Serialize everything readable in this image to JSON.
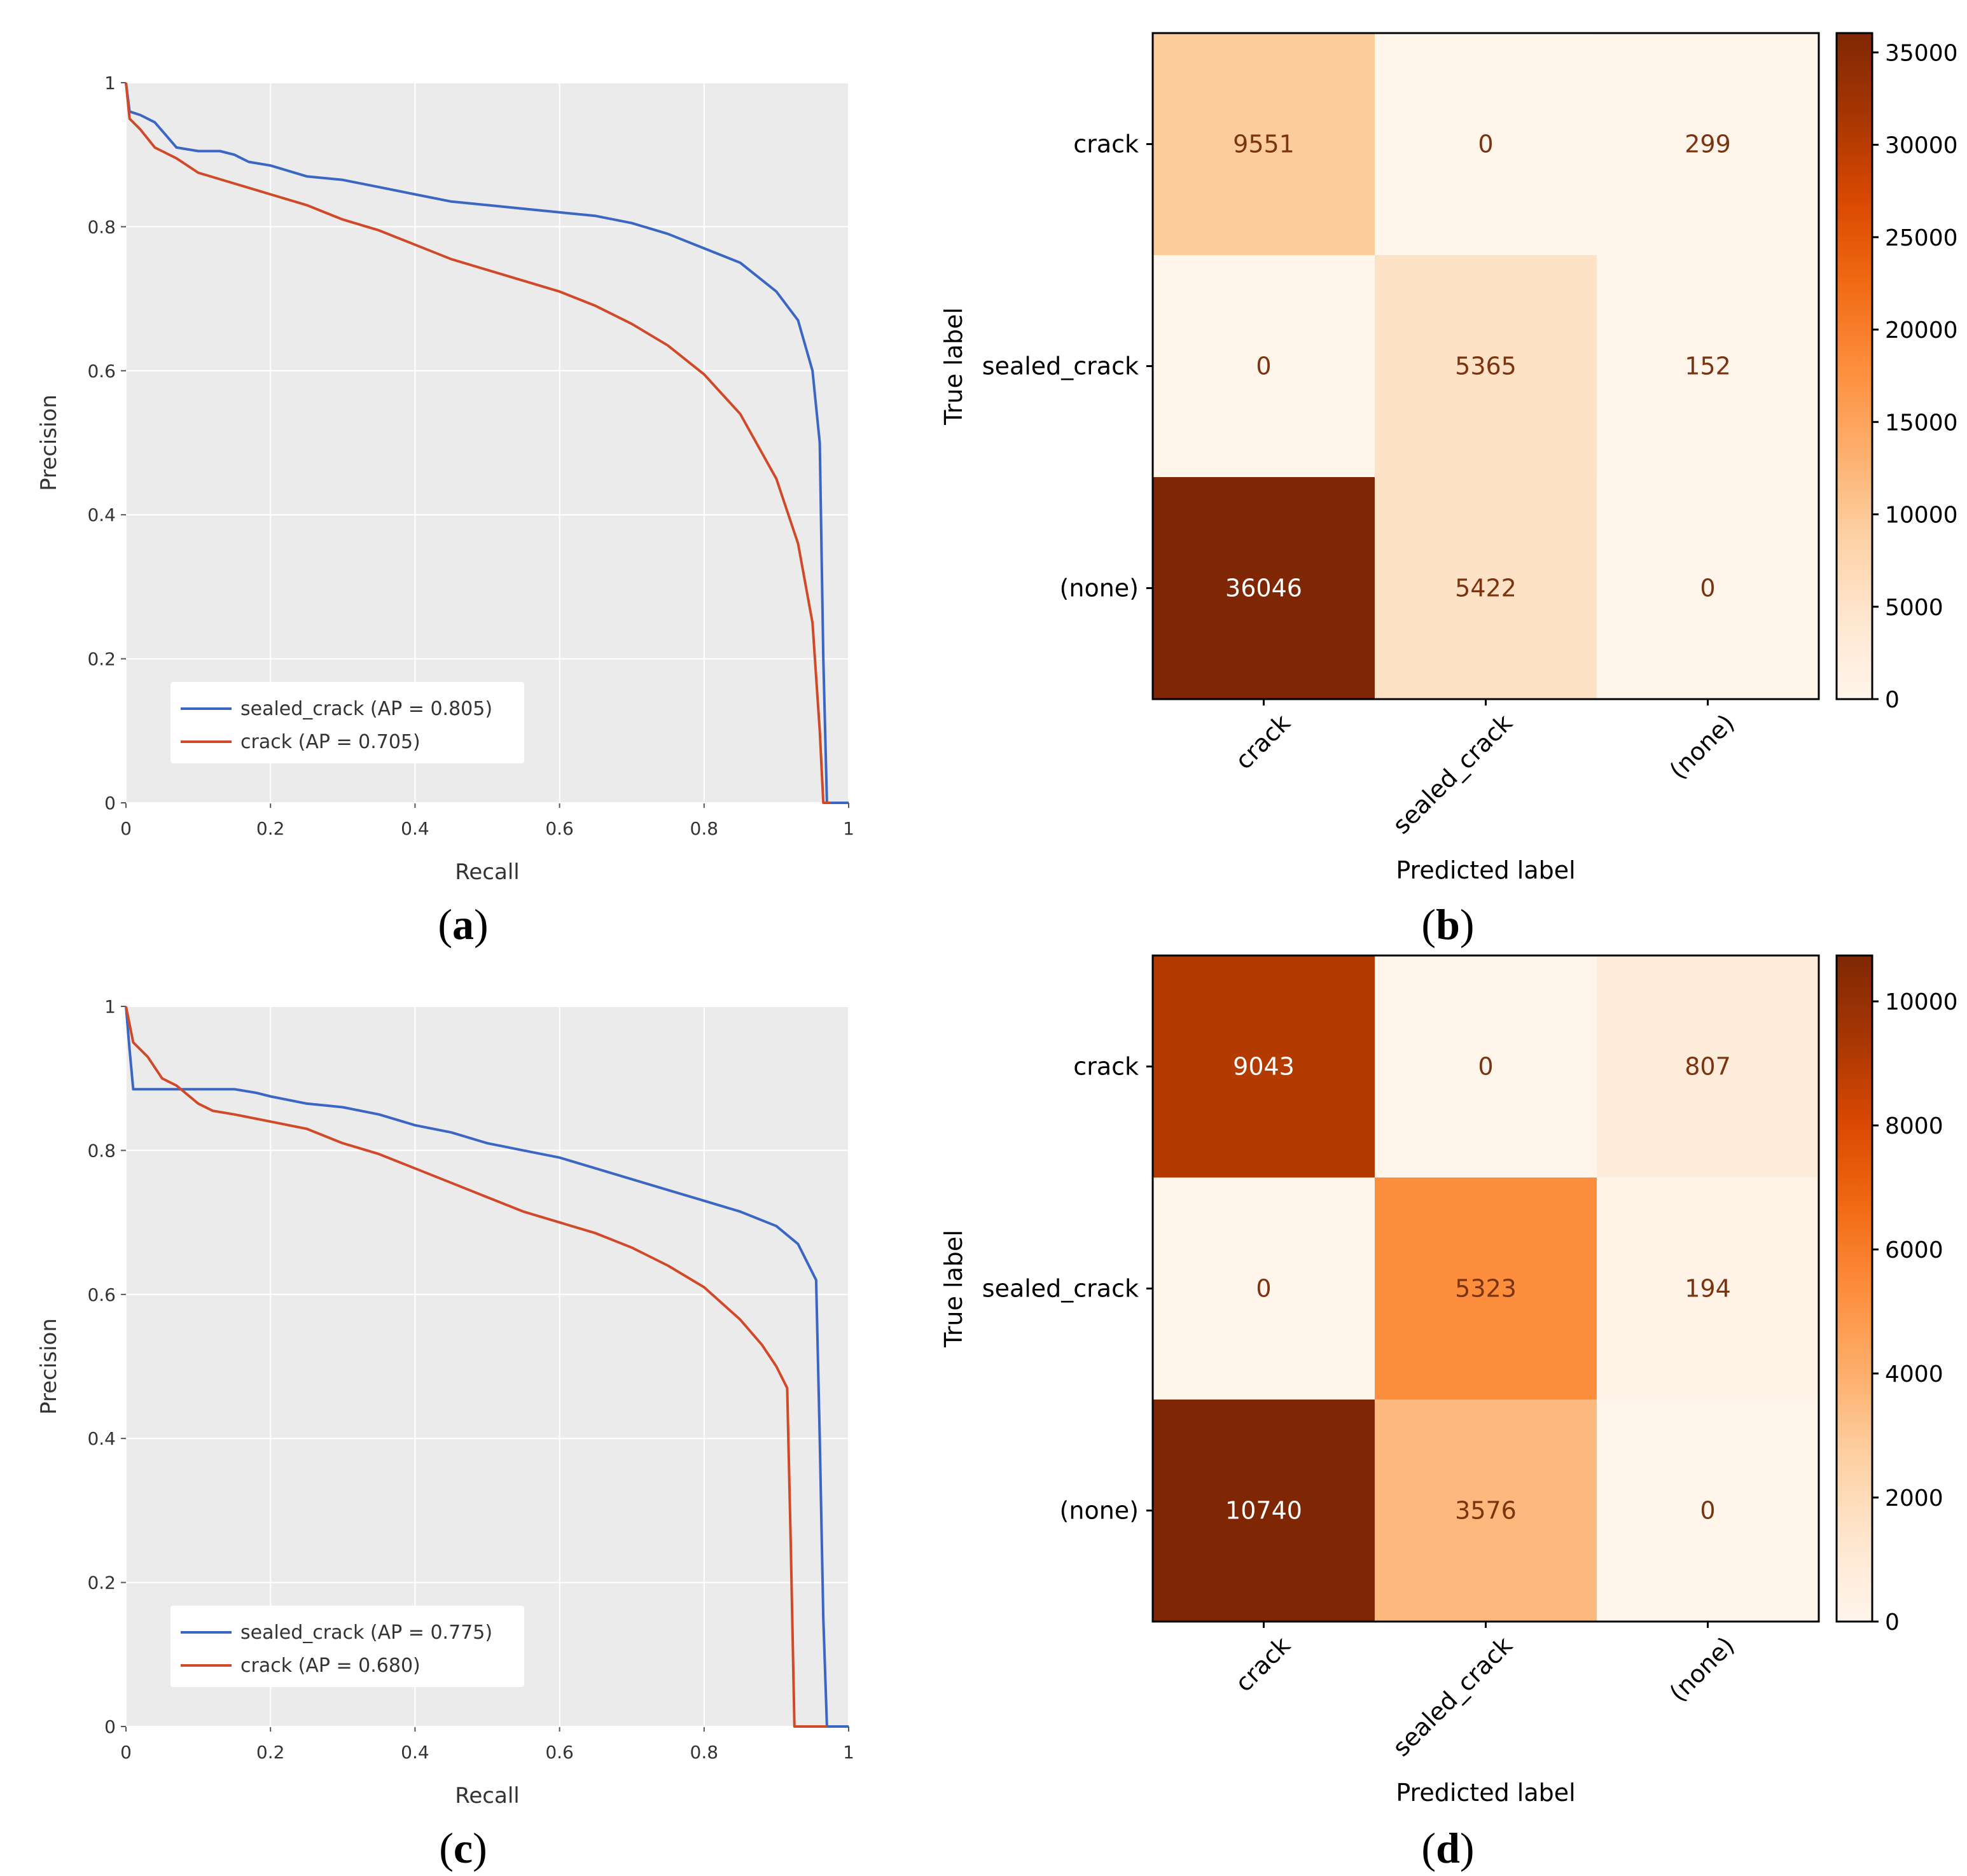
{
  "chart_data": [
    {
      "type": "line",
      "panel": "a",
      "xlabel": "Recall",
      "ylabel": "Precision",
      "xlim": [
        0,
        1
      ],
      "ylim": [
        0,
        1
      ],
      "xticks": [
        "0",
        "0.2",
        "0.4",
        "0.6",
        "0.8",
        "1"
      ],
      "yticks": [
        "0",
        "0.2",
        "0.4",
        "0.6",
        "0.8",
        "1"
      ],
      "grid": true,
      "legend_position": "lower-left",
      "series": [
        {
          "name": "sealed_crack (AP = 0.805)",
          "color": "#3a66c4",
          "points": [
            [
              0,
              1.0
            ],
            [
              0.005,
              0.96
            ],
            [
              0.02,
              0.955
            ],
            [
              0.04,
              0.945
            ],
            [
              0.07,
              0.91
            ],
            [
              0.1,
              0.905
            ],
            [
              0.13,
              0.905
            ],
            [
              0.15,
              0.9
            ],
            [
              0.17,
              0.89
            ],
            [
              0.2,
              0.885
            ],
            [
              0.25,
              0.87
            ],
            [
              0.3,
              0.865
            ],
            [
              0.35,
              0.855
            ],
            [
              0.4,
              0.845
            ],
            [
              0.45,
              0.835
            ],
            [
              0.5,
              0.83
            ],
            [
              0.55,
              0.825
            ],
            [
              0.6,
              0.82
            ],
            [
              0.65,
              0.815
            ],
            [
              0.7,
              0.805
            ],
            [
              0.75,
              0.79
            ],
            [
              0.8,
              0.77
            ],
            [
              0.85,
              0.75
            ],
            [
              0.9,
              0.71
            ],
            [
              0.93,
              0.67
            ],
            [
              0.95,
              0.6
            ],
            [
              0.96,
              0.5
            ],
            [
              0.965,
              0.2
            ],
            [
              0.97,
              0.0
            ],
            [
              1.0,
              0.0
            ]
          ]
        },
        {
          "name": "crack (AP = 0.705)",
          "color": "#d04a2a",
          "points": [
            [
              0,
              1.0
            ],
            [
              0.005,
              0.95
            ],
            [
              0.02,
              0.935
            ],
            [
              0.04,
              0.91
            ],
            [
              0.07,
              0.895
            ],
            [
              0.1,
              0.875
            ],
            [
              0.15,
              0.86
            ],
            [
              0.2,
              0.845
            ],
            [
              0.25,
              0.83
            ],
            [
              0.3,
              0.81
            ],
            [
              0.35,
              0.795
            ],
            [
              0.4,
              0.775
            ],
            [
              0.45,
              0.755
            ],
            [
              0.5,
              0.74
            ],
            [
              0.55,
              0.725
            ],
            [
              0.6,
              0.71
            ],
            [
              0.65,
              0.69
            ],
            [
              0.7,
              0.665
            ],
            [
              0.75,
              0.635
            ],
            [
              0.8,
              0.595
            ],
            [
              0.85,
              0.54
            ],
            [
              0.9,
              0.45
            ],
            [
              0.93,
              0.36
            ],
            [
              0.95,
              0.25
            ],
            [
              0.96,
              0.1
            ],
            [
              0.965,
              0.0
            ],
            [
              0.975,
              0.0
            ]
          ]
        }
      ]
    },
    {
      "type": "heatmap",
      "panel": "b",
      "xlabel": "Predicted label",
      "ylabel": "True label",
      "rows": [
        "crack",
        "sealed_crack",
        "(none)"
      ],
      "cols": [
        "crack",
        "sealed_crack",
        "(none)"
      ],
      "values": [
        [
          9551,
          0,
          299
        ],
        [
          0,
          5365,
          152
        ],
        [
          36046,
          5422,
          0
        ]
      ],
      "colormap": "Oranges",
      "vmin": 0,
      "vmax": 36046,
      "colorbar_ticks": [
        "0",
        "5000",
        "10000",
        "15000",
        "20000",
        "25000",
        "30000",
        "35000"
      ],
      "colorbar_tick_values": [
        0,
        5000,
        10000,
        15000,
        20000,
        25000,
        30000,
        35000
      ]
    },
    {
      "type": "line",
      "panel": "c",
      "xlabel": "Recall",
      "ylabel": "Precision",
      "xlim": [
        0,
        1
      ],
      "ylim": [
        0,
        1
      ],
      "xticks": [
        "0",
        "0.2",
        "0.4",
        "0.6",
        "0.8",
        "1"
      ],
      "yticks": [
        "0",
        "0.2",
        "0.4",
        "0.6",
        "0.8",
        "1"
      ],
      "grid": true,
      "legend_position": "lower-left",
      "series": [
        {
          "name": "sealed_crack (AP = 0.775)",
          "color": "#3a66c4",
          "points": [
            [
              0,
              1.0
            ],
            [
              0.005,
              0.94
            ],
            [
              0.01,
              0.885
            ],
            [
              0.05,
              0.885
            ],
            [
              0.1,
              0.885
            ],
            [
              0.15,
              0.885
            ],
            [
              0.18,
              0.88
            ],
            [
              0.2,
              0.875
            ],
            [
              0.25,
              0.865
            ],
            [
              0.3,
              0.86
            ],
            [
              0.35,
              0.85
            ],
            [
              0.4,
              0.835
            ],
            [
              0.45,
              0.825
            ],
            [
              0.5,
              0.81
            ],
            [
              0.55,
              0.8
            ],
            [
              0.6,
              0.79
            ],
            [
              0.65,
              0.775
            ],
            [
              0.7,
              0.76
            ],
            [
              0.75,
              0.745
            ],
            [
              0.8,
              0.73
            ],
            [
              0.85,
              0.715
            ],
            [
              0.9,
              0.695
            ],
            [
              0.93,
              0.67
            ],
            [
              0.955,
              0.62
            ],
            [
              0.96,
              0.4
            ],
            [
              0.965,
              0.15
            ],
            [
              0.97,
              0.0
            ],
            [
              1.0,
              0.0
            ]
          ]
        },
        {
          "name": "crack (AP = 0.680)",
          "color": "#d04a2a",
          "points": [
            [
              0,
              1.0
            ],
            [
              0.01,
              0.95
            ],
            [
              0.03,
              0.93
            ],
            [
              0.05,
              0.9
            ],
            [
              0.07,
              0.89
            ],
            [
              0.1,
              0.865
            ],
            [
              0.12,
              0.855
            ],
            [
              0.15,
              0.85
            ],
            [
              0.2,
              0.84
            ],
            [
              0.25,
              0.83
            ],
            [
              0.3,
              0.81
            ],
            [
              0.35,
              0.795
            ],
            [
              0.4,
              0.775
            ],
            [
              0.45,
              0.755
            ],
            [
              0.5,
              0.735
            ],
            [
              0.55,
              0.715
            ],
            [
              0.6,
              0.7
            ],
            [
              0.65,
              0.685
            ],
            [
              0.7,
              0.665
            ],
            [
              0.75,
              0.64
            ],
            [
              0.8,
              0.61
            ],
            [
              0.85,
              0.565
            ],
            [
              0.88,
              0.53
            ],
            [
              0.9,
              0.5
            ],
            [
              0.915,
              0.47
            ],
            [
              0.92,
              0.25
            ],
            [
              0.925,
              0.0
            ],
            [
              0.97,
              0.0
            ]
          ]
        }
      ]
    },
    {
      "type": "heatmap",
      "panel": "d",
      "xlabel": "Predicted label",
      "ylabel": "True label",
      "rows": [
        "crack",
        "sealed_crack",
        "(none)"
      ],
      "cols": [
        "crack",
        "sealed_crack",
        "(none)"
      ],
      "values": [
        [
          9043,
          0,
          807
        ],
        [
          0,
          5323,
          194
        ],
        [
          10740,
          3576,
          0
        ]
      ],
      "colormap": "Oranges",
      "vmin": 0,
      "vmax": 10740,
      "colorbar_ticks": [
        "0",
        "2000",
        "4000",
        "6000",
        "8000",
        "10000"
      ],
      "colorbar_tick_values": [
        0,
        2000,
        4000,
        6000,
        8000,
        10000
      ]
    }
  ],
  "panel_labels": [
    "(a)",
    "(b)",
    "(c)",
    "(d)"
  ],
  "panel_letters": [
    "a",
    "b",
    "c",
    "d"
  ]
}
